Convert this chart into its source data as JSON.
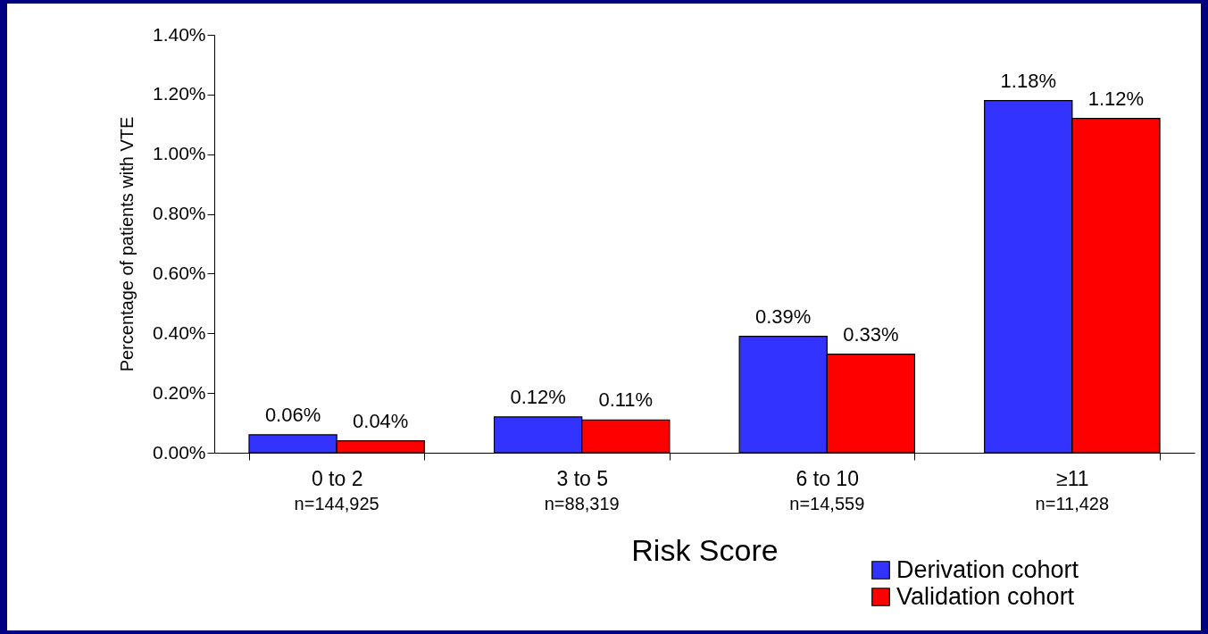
{
  "chart_data": {
    "type": "bar",
    "xlabel": "Risk Score",
    "ylabel": "Percentage of patients with VTE",
    "categories": [
      "0 to 2",
      "3 to 5",
      "6 to 10",
      "≥11"
    ],
    "series": [
      {
        "name": "Derivation cohort",
        "color": "#3333ff",
        "values": [
          0.06,
          0.12,
          0.39,
          1.18
        ],
        "value_labels": [
          "0.06%",
          "0.12%",
          "0.39%",
          "1.18%"
        ]
      },
      {
        "name": "Validation cohort",
        "color": "#ff0000",
        "values": [
          0.04,
          0.11,
          0.33,
          1.12
        ],
        "value_labels": [
          "0.04%",
          "0.11%",
          "0.33%",
          "1.12%"
        ]
      }
    ],
    "ylim": [
      0,
      1.4
    ],
    "yticks": [
      {
        "value": 0,
        "label": "0.00%"
      },
      {
        "value": 0.2,
        "label": "0.20%"
      },
      {
        "value": 0.4,
        "label": "0.40%"
      },
      {
        "value": 0.6,
        "label": "0.60%"
      },
      {
        "value": 0.8,
        "label": "0.80%"
      },
      {
        "value": 1.0,
        "label": "1.00%"
      },
      {
        "value": 1.2,
        "label": "1.20%"
      },
      {
        "value": 1.4,
        "label": "1.40%"
      }
    ],
    "annotations": [
      "n=144,925",
      "n=88,319",
      "n=14,559",
      "n=11,428"
    ],
    "legend": "bottom right",
    "grid": false
  }
}
